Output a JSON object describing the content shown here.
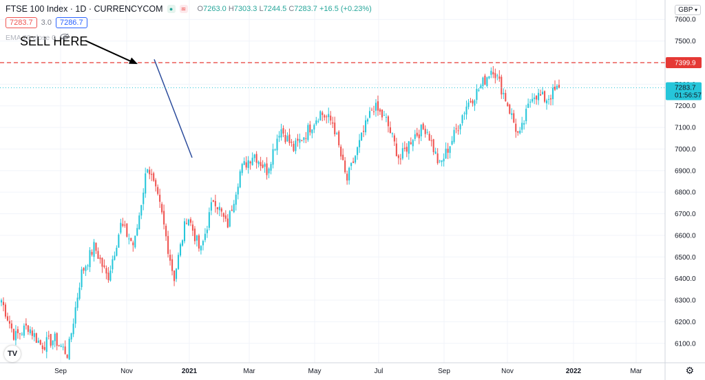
{
  "header": {
    "symbol": "FTSE 100 Index · 1D · CURRENCYCOM",
    "ohlc": {
      "o_label": "O",
      "o": "7263.0",
      "h_label": "H",
      "h": "7303.3",
      "l_label": "L",
      "l": "7244.5",
      "c_label": "C",
      "c": "7283.7",
      "change": "+16.5 (+0.23%)"
    },
    "bid": "7283.7",
    "spread": "3.0",
    "ask": "7286.7",
    "indicator": "EMA 20 close 0",
    "currency": "GBP",
    "logo": "TV"
  },
  "colors": {
    "up": "#26c6da",
    "down": "#ef5350",
    "trendline": "#2c4c9c",
    "hline": "#e53935",
    "grid": "#f0f3fa"
  },
  "annotation": {
    "text": "SELL HERE"
  },
  "chart_data": {
    "type": "candlestick",
    "x": [
      "Sep",
      "Nov",
      "2021",
      "Mar",
      "May",
      "Jul",
      "Sep",
      "Nov",
      "2022",
      "Mar"
    ],
    "y_ticks": [
      6100,
      6200,
      6300,
      6400,
      6500,
      6600,
      6700,
      6800,
      6900,
      7000,
      7100,
      7200,
      7300,
      7400,
      7500,
      7600
    ],
    "y_tick_labels": [
      "6100.0",
      "6200.0",
      "6300.0",
      "6400.0",
      "6500.0",
      "6600.0",
      "6700.0",
      "6800.0",
      "6900.0",
      "7000.0",
      "7100.0",
      "7200.0",
      "7300.0",
      "7400.0",
      "7500.0",
      "7600.0"
    ],
    "ylim": [
      6010,
      7690
    ],
    "key_prices": [
      {
        "label": "",
        "value": 6300
      },
      {
        "label": "",
        "value": 6130
      },
      {
        "label": "",
        "value": 6180
      },
      {
        "label": "",
        "value": 6090
      },
      {
        "label": "",
        "value": 6120
      },
      {
        "label": "",
        "value": 6050
      },
      {
        "label": "",
        "value": 6420
      },
      {
        "label": "",
        "value": 6550
      },
      {
        "label": "",
        "value": 6400
      },
      {
        "label": "",
        "value": 6650
      },
      {
        "label": "",
        "value": 6550
      },
      {
        "label": "",
        "value": 6930
      },
      {
        "label": "",
        "value": 6720
      },
      {
        "label": "",
        "value": 6400
      },
      {
        "label": "",
        "value": 6700
      },
      {
        "label": "",
        "value": 6520
      },
      {
        "label": "",
        "value": 6780
      },
      {
        "label": "",
        "value": 6640
      },
      {
        "label": "",
        "value": 6900
      },
      {
        "label": "",
        "value": 6980
      },
      {
        "label": "",
        "value": 6900
      },
      {
        "label": "",
        "value": 7100
      },
      {
        "label": "",
        "value": 7000
      },
      {
        "label": "",
        "value": 7080
      },
      {
        "label": "",
        "value": 7170
      },
      {
        "label": "",
        "value": 7120
      },
      {
        "label": "",
        "value": 6850
      },
      {
        "label": "",
        "value": 7030
      },
      {
        "label": "",
        "value": 7200
      },
      {
        "label": "",
        "value": 7130
      },
      {
        "label": "",
        "value": 6950
      },
      {
        "label": "",
        "value": 7060
      },
      {
        "label": "",
        "value": 7100
      },
      {
        "label": "",
        "value": 6920
      },
      {
        "label": "",
        "value": 7050
      },
      {
        "label": "",
        "value": 7200
      },
      {
        "label": "",
        "value": 7280
      },
      {
        "label": "",
        "value": 7380
      },
      {
        "label": "",
        "value": 7230
      },
      {
        "label": "",
        "value": 7050
      },
      {
        "label": "",
        "value": 7260
      },
      {
        "label": "",
        "value": 7230
      },
      {
        "label": "",
        "value": 7283.7
      }
    ],
    "horizontal_line": {
      "value": 7399.9,
      "label": "7399.9",
      "style": "dashed"
    },
    "trendline": {
      "from": [
        "2021",
        6960
      ],
      "to": [
        "Nov",
        7415
      ]
    },
    "last_price": {
      "value": "7283.7",
      "countdown": "01:56:57"
    },
    "annotations": [
      "SELL HERE"
    ]
  }
}
